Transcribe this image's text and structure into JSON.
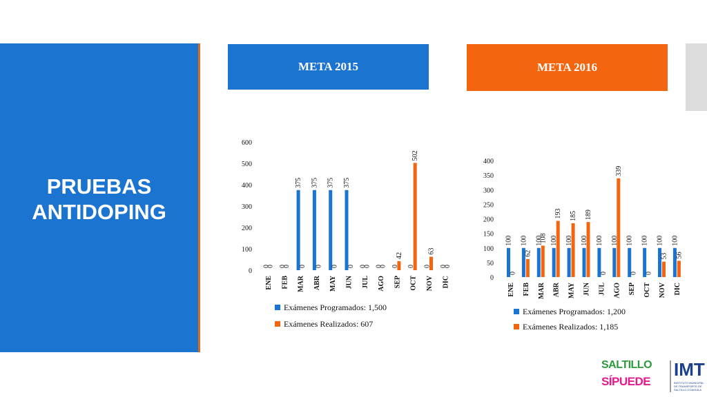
{
  "title": "PRUEBAS ANTIDOPING",
  "headers": {
    "left": "META 2015",
    "right": "META 2016"
  },
  "logo": {
    "line1": "SALTILLO",
    "line2": "SÍPUEDE",
    "imt": "IMT",
    "imt_sub": "INSTITUTO MUNICIPAL DE TRANSPORTE DE SALTILLO COAHUILA"
  },
  "colors": {
    "programados": "#1c74d1",
    "realizados": "#f4650f"
  },
  "chart_data": [
    {
      "type": "bar",
      "categories": [
        "ENE",
        "FEB",
        "MAR",
        "ABR",
        "MAY",
        "JUN",
        "JUL",
        "AGO",
        "SEP",
        "OCT",
        "NOV",
        "DIC"
      ],
      "series": [
        {
          "name": "Exámenes Programados: 1,500",
          "values": [
            0,
            0,
            375,
            375,
            375,
            375,
            0,
            0,
            0,
            0,
            0,
            0
          ]
        },
        {
          "name": "Exámenes Realizados: 607",
          "values": [
            0,
            0,
            0,
            0,
            0,
            0,
            0,
            0,
            42,
            502,
            63,
            0
          ]
        }
      ],
      "yticks": [
        0,
        100,
        200,
        300,
        400,
        500,
        600
      ],
      "ylim": [
        0,
        600
      ],
      "legend": "bottom"
    },
    {
      "type": "bar",
      "categories": [
        "ENE",
        "FEB",
        "MAR",
        "ABR",
        "MAY",
        "JUN",
        "JUL",
        "AGO",
        "SEP",
        "OCT",
        "NOV",
        "DIC"
      ],
      "series": [
        {
          "name": "Exámenes Programados: 1,200",
          "values": [
            100,
            100,
            100,
            100,
            100,
            100,
            100,
            100,
            100,
            100,
            100,
            100
          ]
        },
        {
          "name": "Exámenes Realizados: 1,185",
          "values": [
            0,
            62,
            108,
            193,
            185,
            189,
            0,
            339,
            0,
            0,
            53,
            56
          ]
        }
      ],
      "yticks": [
        0,
        50,
        100,
        150,
        200,
        250,
        300,
        350,
        400
      ],
      "ylim": [
        0,
        400
      ],
      "legend": "bottom"
    }
  ]
}
